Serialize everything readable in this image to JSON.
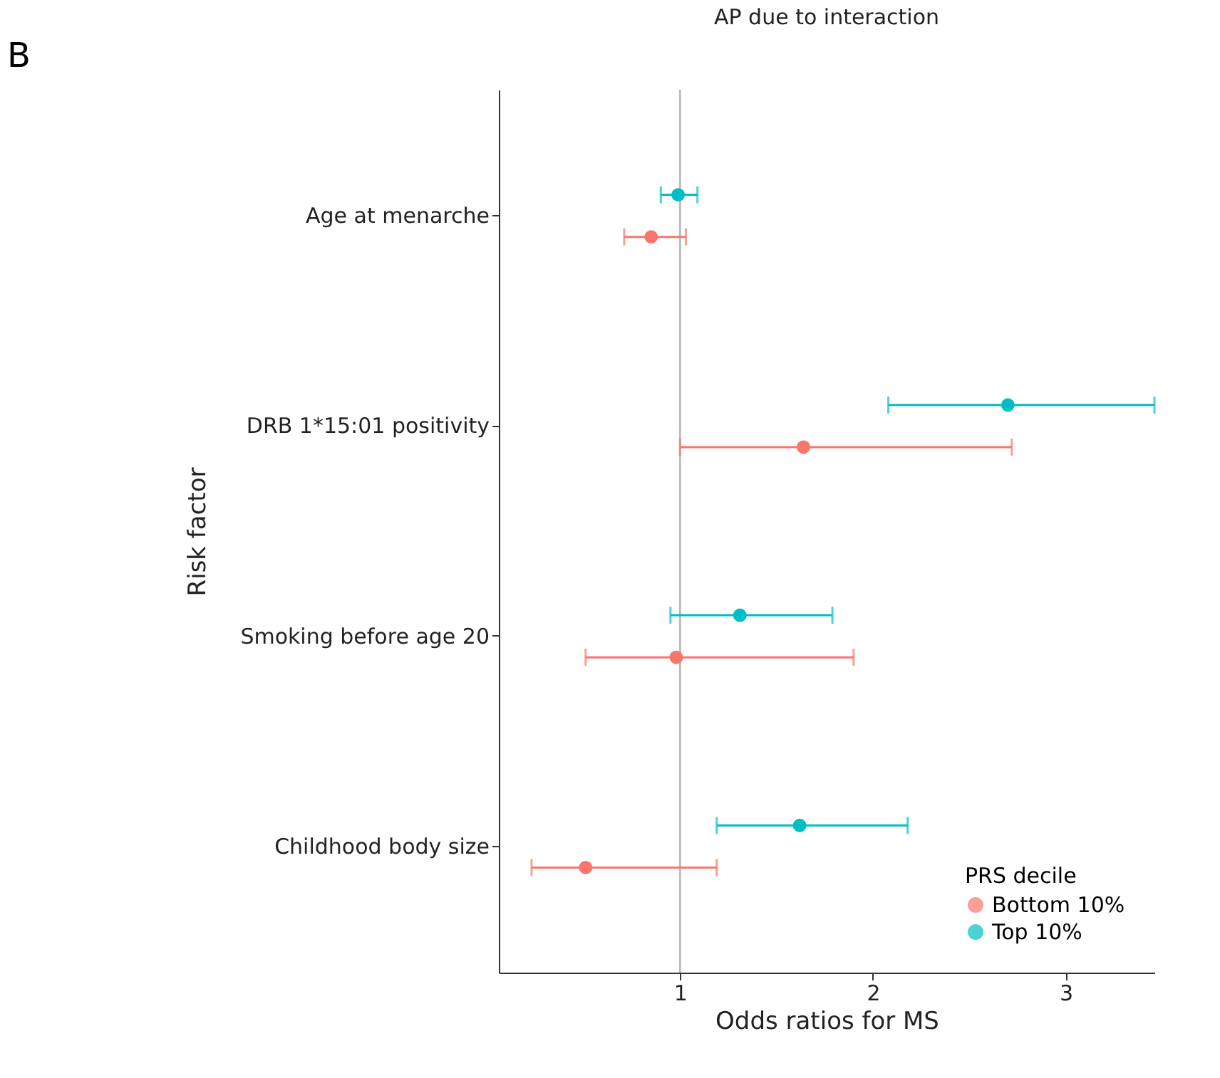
{
  "chart_data": {
    "type": "scatter",
    "orientation": "horizontal",
    "title": "AP due to interaction",
    "xlabel": "Odds ratios for MS",
    "ylabel": "Risk factor",
    "legend_title": "PRS decile",
    "legend": "bottom right",
    "marker": "circle",
    "grid": false,
    "annotations": [
      "B"
    ],
    "categories": [
      "Age at menarche",
      "DRB  1*15:01 positivity",
      "Smoking before age 20",
      "Childhood body size"
    ],
    "series": [
      {
        "name": "Bottom 10%",
        "color": "#f8766d",
        "values": [
          0.85,
          1.64,
          0.98,
          0.51
        ],
        "errors": [
          [
            0.71,
            1.03
          ],
          [
            1.0,
            2.72
          ],
          [
            0.51,
            1.9
          ],
          [
            0.23,
            1.19
          ]
        ]
      },
      {
        "name": "Top 10%",
        "color": "#00bfc4",
        "values": [
          0.99,
          2.7,
          1.31,
          1.62
        ],
        "errors": [
          [
            0.9,
            1.09
          ],
          [
            2.08,
            3.46
          ],
          [
            0.95,
            1.79
          ],
          [
            1.19,
            2.18
          ]
        ]
      }
    ],
    "xlim": [
      0.06,
      3.46
    ],
    "xticks": [
      1,
      2,
      3
    ],
    "ref_lines": [
      {
        "axis": "x",
        "value": 1,
        "color": "#bdbdbd"
      }
    ]
  }
}
